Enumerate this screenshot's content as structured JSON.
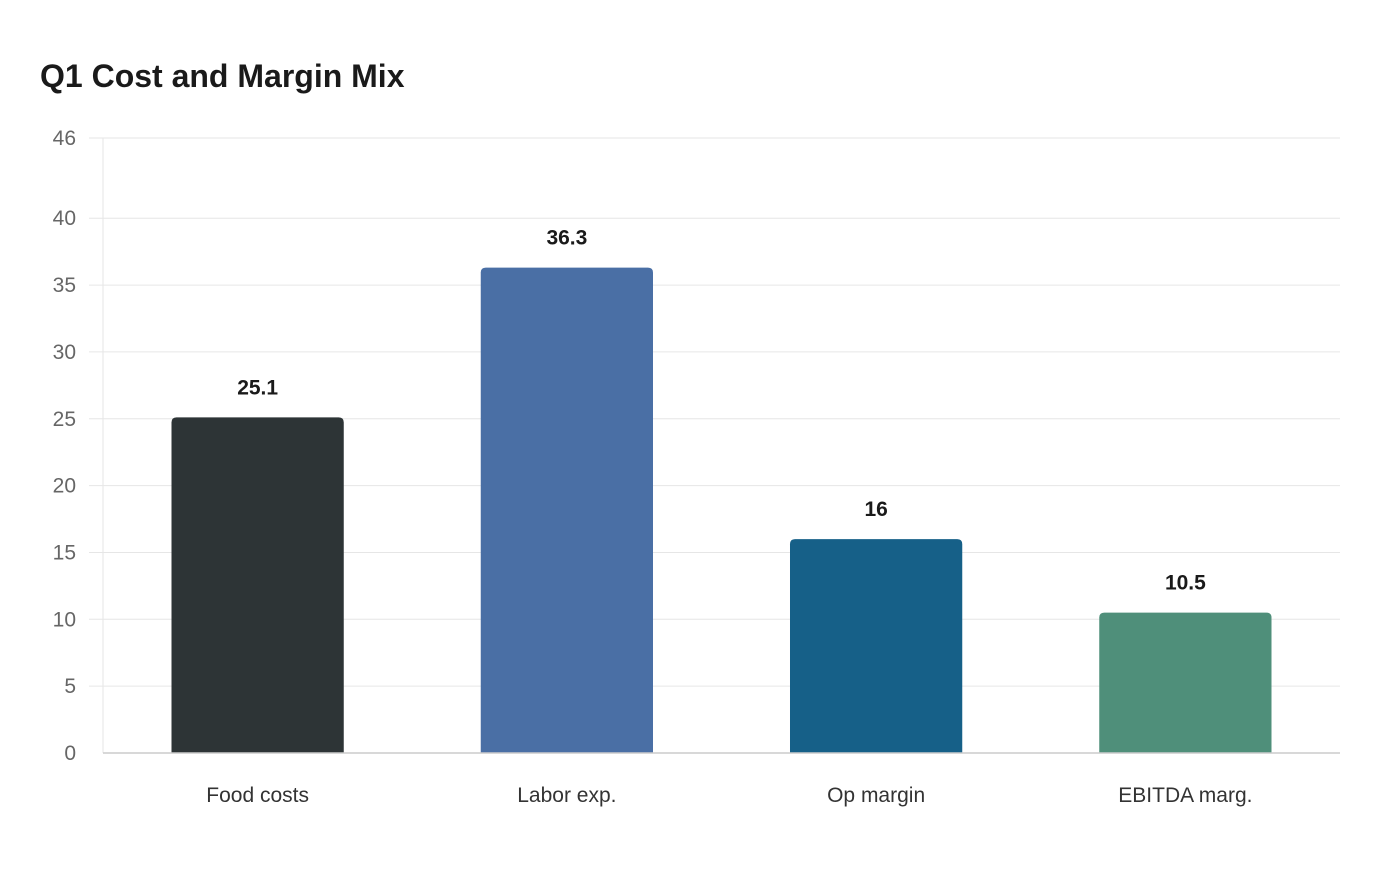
{
  "chart_data": {
    "type": "bar",
    "title": "Q1 Cost and Margin Mix",
    "xlabel": "",
    "ylabel": "",
    "categories": [
      "Food costs",
      "Labor exp.",
      "Op margin",
      "EBITDA marg."
    ],
    "values": [
      25.1,
      36.3,
      16,
      10.5
    ],
    "value_labels": [
      "25.1",
      "36.3",
      "16",
      "10.5"
    ],
    "colors": [
      "#2d3436",
      "#4a6fa5",
      "#166088",
      "#4f8f7a"
    ],
    "ylim": [
      0,
      46
    ],
    "yticks": [
      0,
      5,
      10,
      15,
      20,
      25,
      30,
      35,
      40,
      46
    ],
    "grid": true,
    "legend": "none"
  }
}
